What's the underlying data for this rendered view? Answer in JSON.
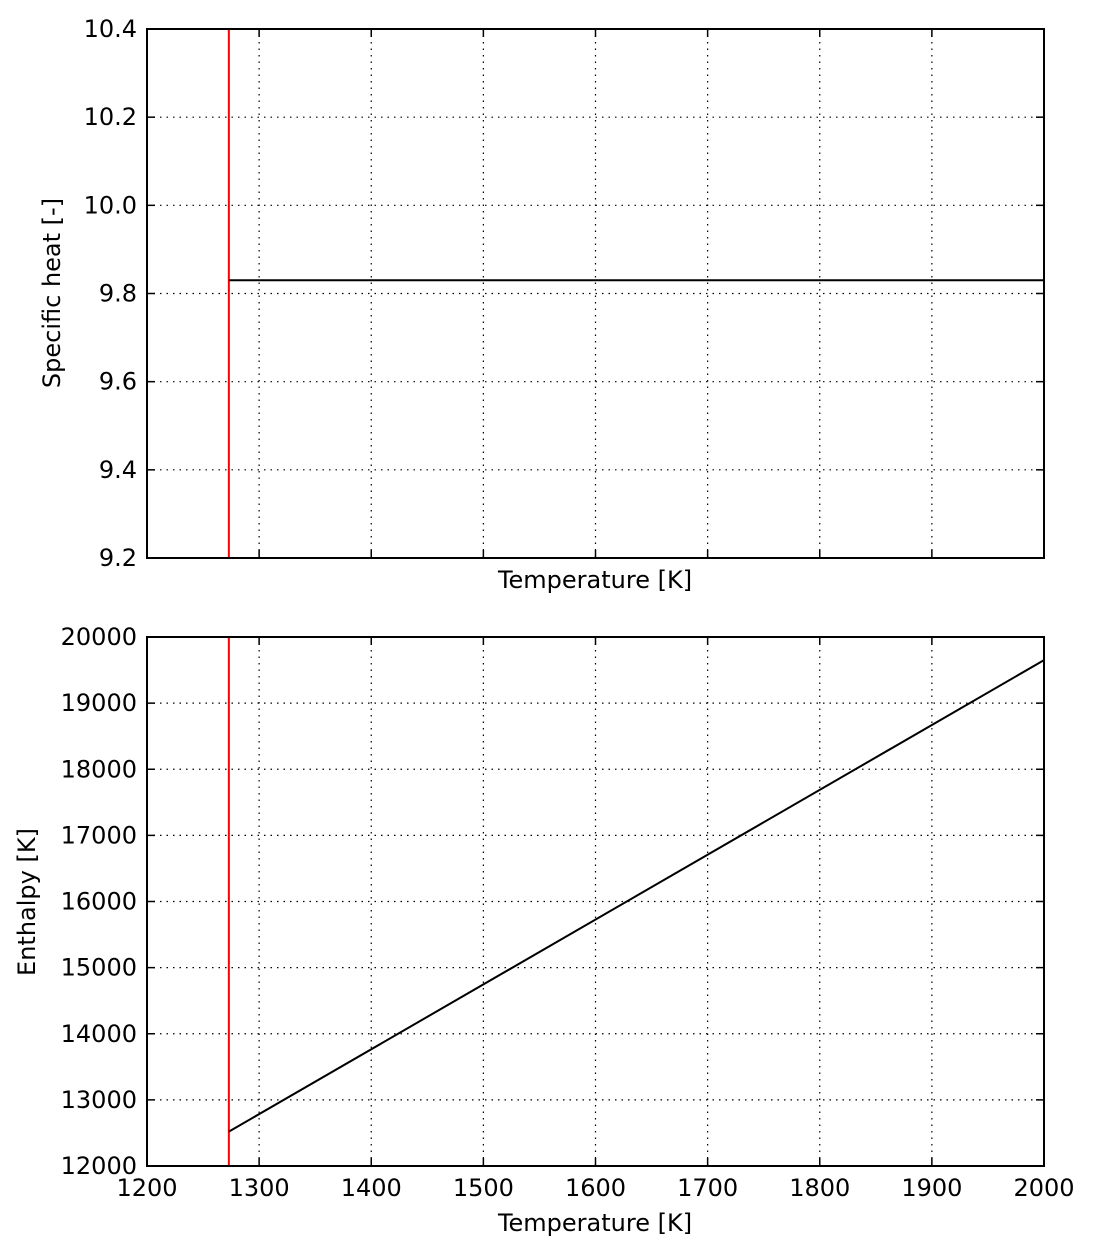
{
  "chart_data": [
    {
      "type": "line",
      "title": "",
      "xlabel": "Temperature [K]",
      "ylabel": "Specific heat [-]",
      "xlim": [
        1200,
        2000
      ],
      "ylim": [
        9.2,
        10.4
      ],
      "x_ticks": [
        1200,
        1300,
        1400,
        1500,
        1600,
        1700,
        1800,
        1900,
        2000
      ],
      "x_tick_labels_visible": false,
      "y_ticks": [
        9.2,
        9.4,
        9.6,
        9.8,
        10.0,
        10.2,
        10.4
      ],
      "y_tick_labels": [
        "9.2",
        "9.4",
        "9.6",
        "9.8",
        "10.0",
        "10.2",
        "10.4"
      ],
      "grid": true,
      "series": [
        {
          "color": "#000000",
          "x": [
            1273,
            2000
          ],
          "y": [
            9.83,
            9.83
          ]
        }
      ],
      "vertical_lines": [
        {
          "x": 1273,
          "color": "#ff0000"
        }
      ]
    },
    {
      "type": "line",
      "title": "",
      "xlabel": "Temperature [K]",
      "ylabel": "Enthalpy [K]",
      "xlim": [
        1200,
        2000
      ],
      "ylim": [
        12000,
        20000
      ],
      "x_ticks": [
        1200,
        1300,
        1400,
        1500,
        1600,
        1700,
        1800,
        1900,
        2000
      ],
      "x_tick_labels": [
        "1200",
        "1300",
        "1400",
        "1500",
        "1600",
        "1700",
        "1800",
        "1900",
        "2000"
      ],
      "x_tick_labels_visible": true,
      "y_ticks": [
        12000,
        13000,
        14000,
        15000,
        16000,
        17000,
        18000,
        19000,
        20000
      ],
      "y_tick_labels": [
        "12000",
        "13000",
        "14000",
        "15000",
        "16000",
        "17000",
        "18000",
        "19000",
        "20000"
      ],
      "grid": true,
      "series": [
        {
          "color": "#000000",
          "x": [
            1273,
            2000
          ],
          "y": [
            12520,
            19650
          ]
        }
      ],
      "vertical_lines": [
        {
          "x": 1273,
          "color": "#ff0000"
        }
      ]
    }
  ]
}
